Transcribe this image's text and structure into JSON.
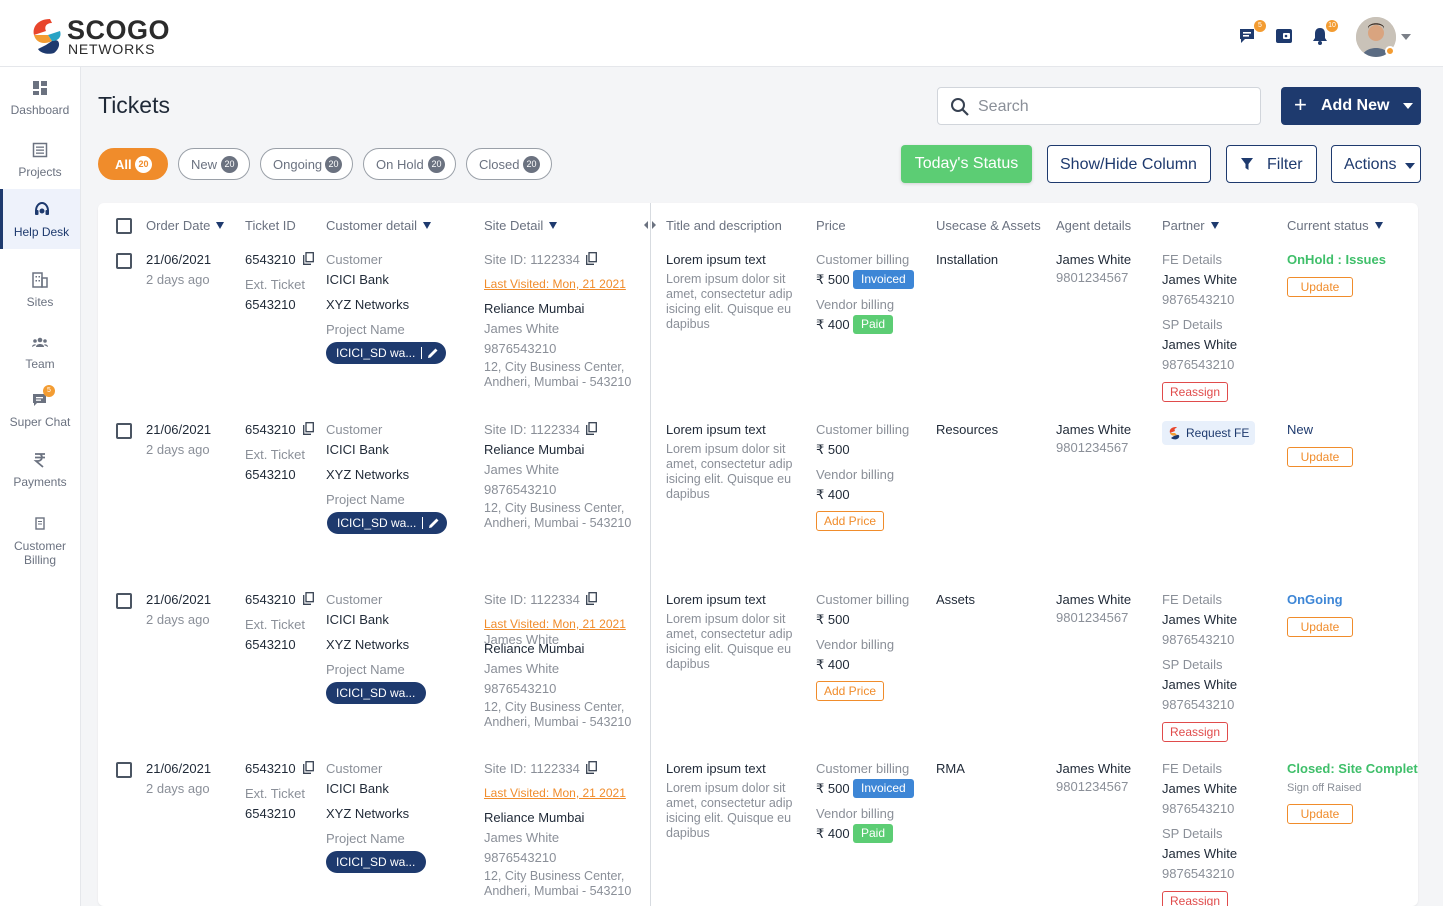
{
  "brand": {
    "name_top": "SCOGO",
    "name_bottom": "NETWORKS"
  },
  "header": {
    "chat_badge": "5",
    "notifications_badge": "10"
  },
  "sidebar": {
    "items": [
      {
        "label": "Dashboard",
        "icon": "dashboard-icon"
      },
      {
        "label": "Projects",
        "icon": "projects-icon"
      },
      {
        "label": "Help Desk",
        "icon": "helpdesk-icon",
        "active": true
      },
      {
        "label": "Sites",
        "icon": "sites-icon"
      },
      {
        "label": "Team",
        "icon": "team-icon"
      },
      {
        "label": "Super Chat",
        "icon": "chat-icon",
        "badge": "5"
      },
      {
        "label": "Payments",
        "icon": "rupee-icon"
      },
      {
        "label": "Customer",
        "label2": "Billing",
        "icon": "billing-icon"
      }
    ]
  },
  "page": {
    "title": "Tickets",
    "search_placeholder": "Search",
    "add_new": "Add New"
  },
  "filters": [
    {
      "label": "All",
      "count": "20",
      "active": true
    },
    {
      "label": "New",
      "count": "20"
    },
    {
      "label": "Ongoing",
      "count": "20"
    },
    {
      "label": "On Hold",
      "count": "20"
    },
    {
      "label": "Closed",
      "count": "20"
    }
  ],
  "toolbar": {
    "todays_status": "Today's Status",
    "show_hide": "Show/Hide Column",
    "filter": "Filter",
    "actions": "Actions"
  },
  "columns": {
    "order_date": "Order Date",
    "ticket_id": "Ticket ID",
    "customer_detail": "Customer detail",
    "site_detail": "Site Detail",
    "title_desc": "Title and description",
    "price": "Price",
    "usecase": "Usecase & Assets",
    "agent": "Agent details",
    "partner": "Partner",
    "status": "Current status"
  },
  "common": {
    "ext_ticket": "Ext. Ticket",
    "customer": "Customer",
    "project_name": "Project Name",
    "customer_billing": "Customer billing",
    "vendor_billing": "Vendor billing",
    "fe_details": "FE Details",
    "sp_details": "SP Details",
    "update": "Update",
    "reassign": "Reassign",
    "add_price": "Add Price",
    "invoiced": "Invoiced",
    "paid": "Paid",
    "request_fe": "Request FE"
  },
  "rows": [
    {
      "date": "21/06/2021",
      "ago": "2 days ago",
      "ticket": "6543210",
      "ext": "6543210",
      "customer_name": "ICICI Bank",
      "company": "XYZ Networks",
      "project": "ICICI_SD wa...",
      "site_id": "Site ID: 1122334",
      "last_visited": "Last Visited: Mon, 21 2021",
      "site_name": "Reliance Mumbai",
      "contact": "James White",
      "phone": "9876543210",
      "addr1": "12, City Business Center,",
      "addr2": "Andheri, Mumbai - 543210",
      "title": "Lorem ipsum text",
      "desc": "Lorem ipsum dolor sit amet, consectetur adip isicing elit. Quisque eu dapibus",
      "cust_price": "₹ 500",
      "vend_price": "₹ 400",
      "usecase": "Installation",
      "agent": "James White",
      "agent_phone": "9801234567",
      "fe_name": "James White",
      "fe_phone": "9876543210",
      "sp_name": "James White",
      "sp_phone": "9876543210",
      "status": "OnHold : Issues"
    },
    {
      "date": "21/06/2021",
      "ago": "2 days ago",
      "ticket": "6543210",
      "ext": "6543210",
      "customer_name": "ICICI Bank",
      "company": "XYZ Networks",
      "project": "ICICI_SD wa...",
      "site_id": "Site ID: 1122334",
      "site_name": "Reliance Mumbai",
      "contact": "James White",
      "phone": "9876543210",
      "addr1": "12, City Business Center,",
      "addr2": "Andheri, Mumbai - 543210",
      "title": "Lorem ipsum text",
      "desc": "Lorem ipsum dolor sit amet, consectetur adip isicing elit. Quisque eu dapibus",
      "cust_price": "₹ 500",
      "vend_price": "₹ 400",
      "usecase": "Resources",
      "agent": "James White",
      "agent_phone": "9801234567",
      "status": "New"
    },
    {
      "date": "21/06/2021",
      "ago": "2 days ago",
      "ticket": "6543210",
      "ext": "6543210",
      "customer_name": "ICICI Bank",
      "company": "XYZ Networks",
      "project": "ICICI_SD wa...",
      "site_id": "Site ID: 1122334",
      "last_visited": "Last Visited: Mon, 21 2021",
      "overlap_name": "James White",
      "site_name": "Reliance Mumbai",
      "contact": "James White",
      "phone": "9876543210",
      "addr1": "12, City Business Center,",
      "addr2": "Andheri, Mumbai - 543210",
      "title": "Lorem ipsum text",
      "desc": "Lorem ipsum dolor sit amet, consectetur adip isicing elit. Quisque eu dapibus",
      "cust_price": "₹ 500",
      "vend_price": "₹ 400",
      "usecase": "Assets",
      "agent": "James White",
      "agent_phone": "9801234567",
      "fe_name": "James White",
      "fe_phone": "9876543210",
      "sp_name": "James White",
      "sp_phone": "9876543210",
      "status": "OnGoing"
    },
    {
      "date": "21/06/2021",
      "ago": "2 days ago",
      "ticket": "6543210",
      "ext": "6543210",
      "customer_name": "ICICI Bank",
      "company": "XYZ Networks",
      "project": "ICICI_SD wa...",
      "site_id": "Site ID: 1122334",
      "last_visited": "Last Visited: Mon, 21 2021",
      "site_name": "Reliance Mumbai",
      "contact": "James White",
      "phone": "9876543210",
      "addr1": "12, City Business Center,",
      "addr2": "Andheri, Mumbai - 543210",
      "title": "Lorem ipsum text",
      "desc": "Lorem ipsum dolor sit amet, consectetur adip isicing elit. Quisque eu dapibus",
      "cust_price": "₹ 500",
      "vend_price": "₹ 400",
      "usecase": "RMA",
      "agent": "James White",
      "agent_phone": "9801234567",
      "fe_name": "James White",
      "fe_phone": "9876543210",
      "sp_name": "James White",
      "sp_phone": "9876543210",
      "status": "Closed: Site Complete",
      "status_sub": "Sign off Raised"
    }
  ]
}
